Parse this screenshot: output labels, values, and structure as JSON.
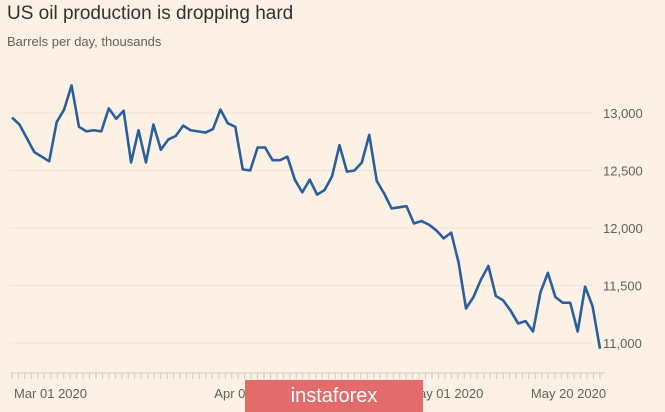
{
  "chart_data": {
    "type": "line",
    "title": "US oil production is dropping hard",
    "subtitle": "Barrels per day, thousands",
    "x_range": [
      "2020-03-01",
      "2020-05-31"
    ],
    "ylim": [
      10850,
      13300
    ],
    "y_ticks": [
      11000,
      11500,
      12000,
      12500,
      13000
    ],
    "y_tick_labels": [
      "11,000",
      "11,500",
      "12,000",
      "12,500",
      "13,000"
    ],
    "x_ticks": [
      {
        "date": "2020-03-01",
        "label": "Mar 01 2020"
      },
      {
        "date": "2020-04-01",
        "label": "Apr 01 2020"
      },
      {
        "date": "2020-05-01",
        "label": "May 01 2020"
      },
      {
        "date": "2020-05-20",
        "label": "May 20 2020"
      }
    ],
    "grid": true,
    "line_color": "#2a5e9c",
    "values": [
      12960,
      12900,
      12780,
      12660,
      12620,
      12580,
      12920,
      13030,
      13240,
      12880,
      12840,
      12850,
      12840,
      13040,
      12950,
      13020,
      12570,
      12850,
      12570,
      12900,
      12680,
      12770,
      12800,
      12890,
      12850,
      12840,
      12830,
      12860,
      13030,
      12910,
      12880,
      12510,
      12500,
      12700,
      12700,
      12590,
      12590,
      12620,
      12420,
      12310,
      12420,
      12290,
      12330,
      12450,
      12720,
      12490,
      12500,
      12570,
      12810,
      12410,
      12300,
      12170,
      12180,
      12190,
      12040,
      12060,
      12030,
      11980,
      11910,
      11960,
      11700,
      11300,
      11400,
      11550,
      11670,
      11410,
      11370,
      11280,
      11170,
      11190,
      11100,
      11440,
      11610,
      11400,
      11350,
      11350,
      11100,
      11490,
      11320,
      10950
    ]
  },
  "watermark": {
    "text": "instaforex",
    "color": "#e36b6b"
  }
}
